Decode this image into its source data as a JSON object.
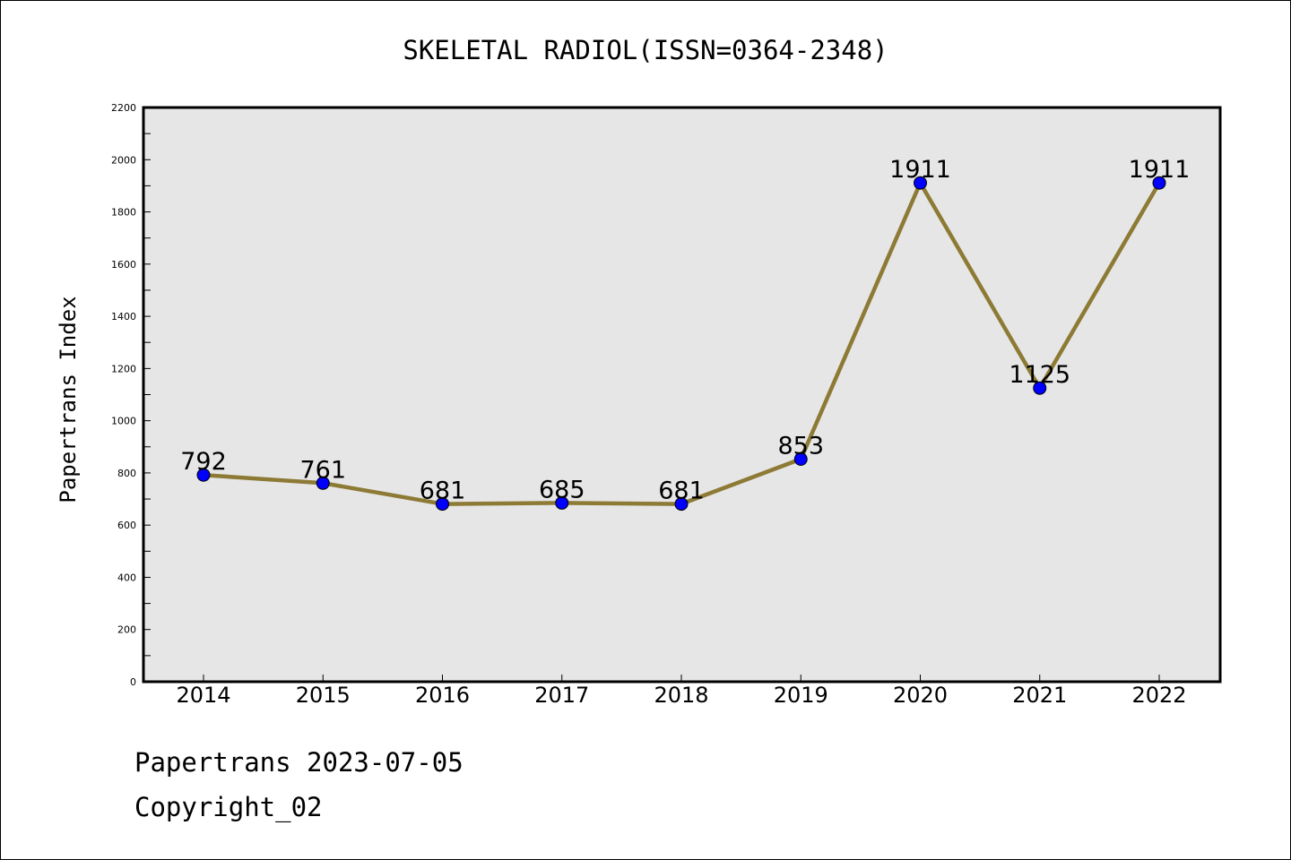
{
  "chart_data": {
    "type": "line",
    "title": "SKELETAL RADIOL(ISSN=0364-2348)",
    "ylabel": "Papertrans Index",
    "xlabel": "",
    "categories": [
      "2014",
      "2015",
      "2016",
      "2017",
      "2018",
      "2019",
      "2020",
      "2021",
      "2022"
    ],
    "series": [
      {
        "values": [
          792,
          761,
          681,
          685,
          681,
          853,
          1911,
          1125,
          1911
        ]
      }
    ],
    "ylim": [
      0,
      2200
    ],
    "yticks": [
      "0",
      "200",
      "400",
      "600",
      "800",
      "1000",
      "1200",
      "1400",
      "1600",
      "1800",
      "2000",
      "2200"
    ],
    "grid": false,
    "line_color": "#8c7a35",
    "marker_color": "#0000ff",
    "plot_background": "#e6e6e6"
  },
  "footer": {
    "line1": "Papertrans 2023-07-05",
    "line2": "Copyright_02"
  }
}
